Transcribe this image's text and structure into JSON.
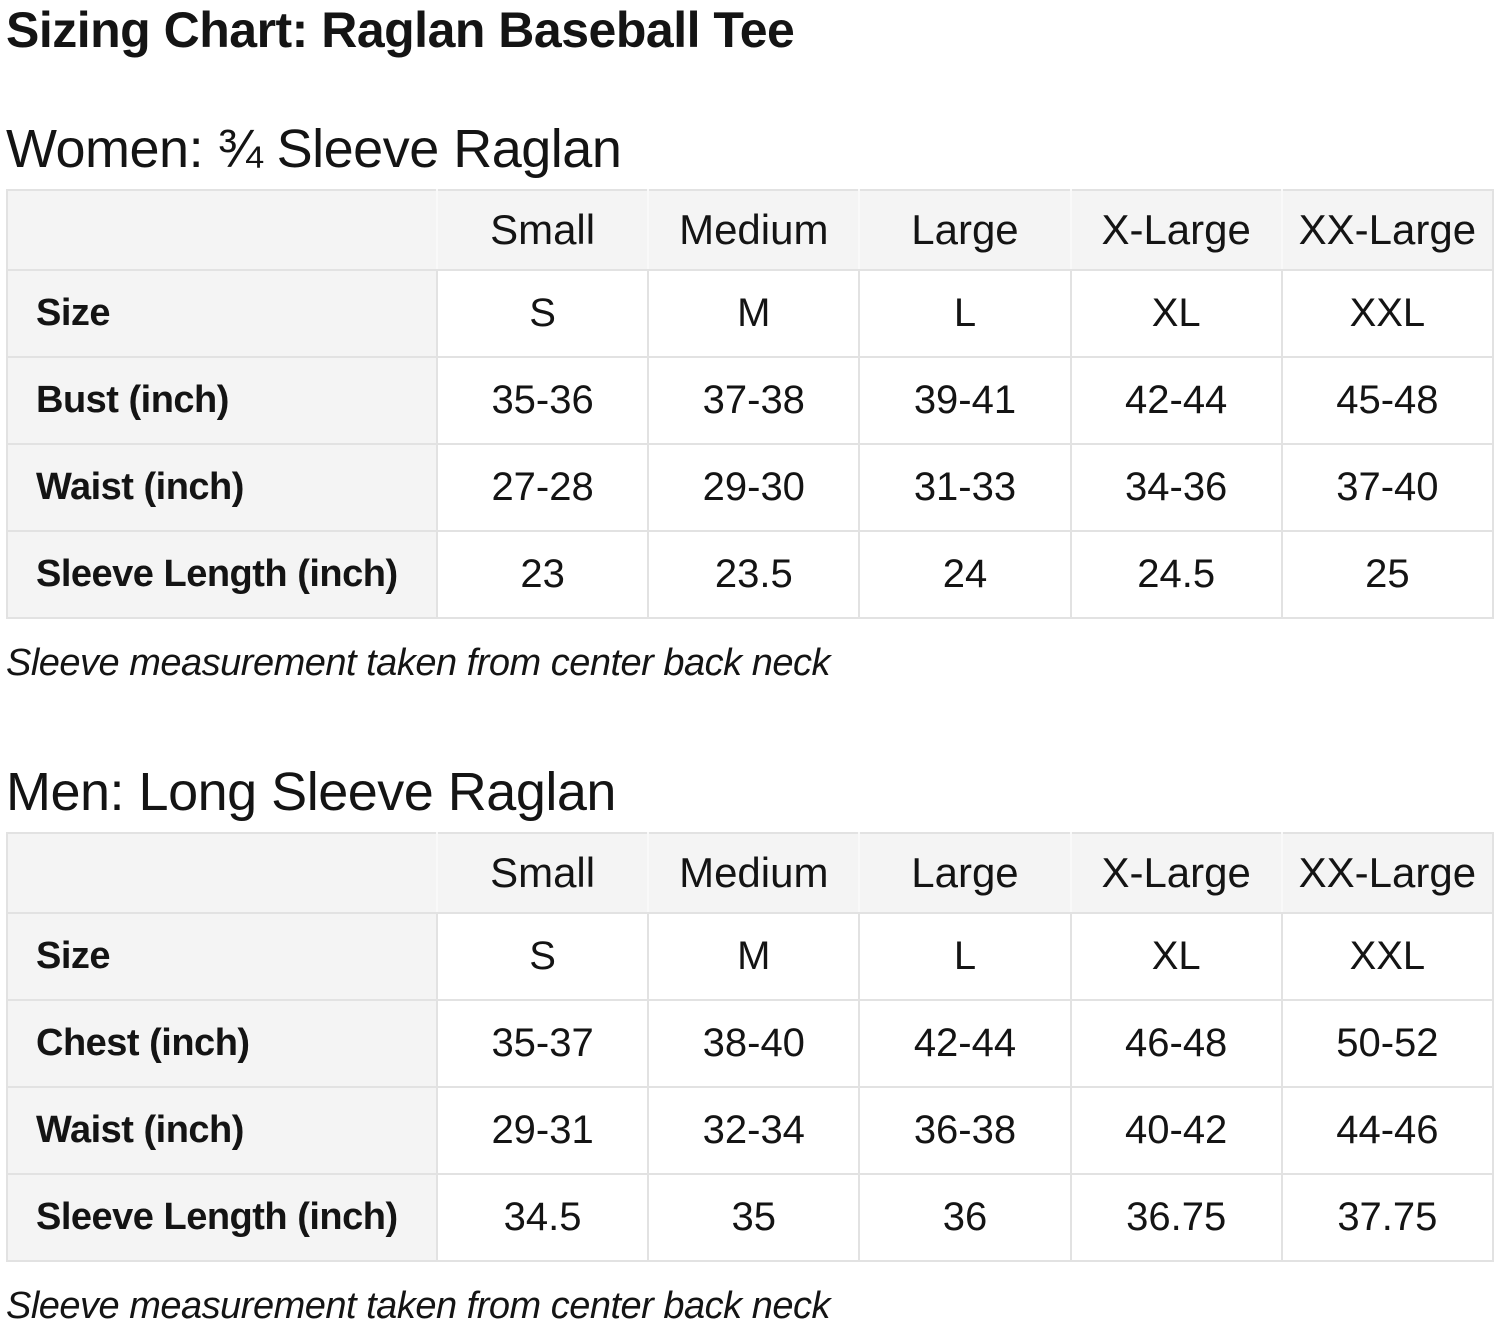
{
  "page": {
    "title": "Sizing Chart: Raglan Baseball Tee"
  },
  "colors": {
    "text": "#141414",
    "header_cell_bg": "#f4f4f4",
    "label_cell_bg": "#f4f4f4",
    "data_cell_bg": "#ffffff",
    "table_border": "#e2e2e2",
    "page_bg": "#ffffff"
  },
  "sections": [
    {
      "heading": "Women: ¾ Sleeve Raglan",
      "note": "Sleeve measurement taken from center back neck",
      "table": {
        "columns": [
          "",
          "Small",
          "Medium",
          "Large",
          "X-Large",
          "XX-Large"
        ],
        "rows": [
          {
            "label": "Size",
            "values": [
              "S",
              "M",
              "L",
              "XL",
              "XXL"
            ]
          },
          {
            "label": "Bust (inch)",
            "values": [
              "35-36",
              "37-38",
              "39-41",
              "42-44",
              "45-48"
            ]
          },
          {
            "label": "Waist (inch)",
            "values": [
              "27-28",
              "29-30",
              "31-33",
              "34-36",
              "37-40"
            ]
          },
          {
            "label": "Sleeve Length (inch)",
            "values": [
              "23",
              "23.5",
              "24",
              "24.5",
              "25"
            ]
          }
        ]
      }
    },
    {
      "heading": "Men: Long Sleeve Raglan",
      "note": "Sleeve measurement taken from center back neck",
      "table": {
        "columns": [
          "",
          "Small",
          "Medium",
          "Large",
          "X-Large",
          "XX-Large"
        ],
        "rows": [
          {
            "label": "Size",
            "values": [
              "S",
              "M",
              "L",
              "XL",
              "XXL"
            ]
          },
          {
            "label": "Chest (inch)",
            "values": [
              "35-37",
              "38-40",
              "42-44",
              "46-48",
              "50-52"
            ]
          },
          {
            "label": "Waist (inch)",
            "values": [
              "29-31",
              "32-34",
              "36-38",
              "40-42",
              "44-46"
            ]
          },
          {
            "label": "Sleeve Length (inch)",
            "values": [
              "34.5",
              "35",
              "36",
              "36.75",
              "37.75"
            ]
          }
        ]
      }
    }
  ]
}
